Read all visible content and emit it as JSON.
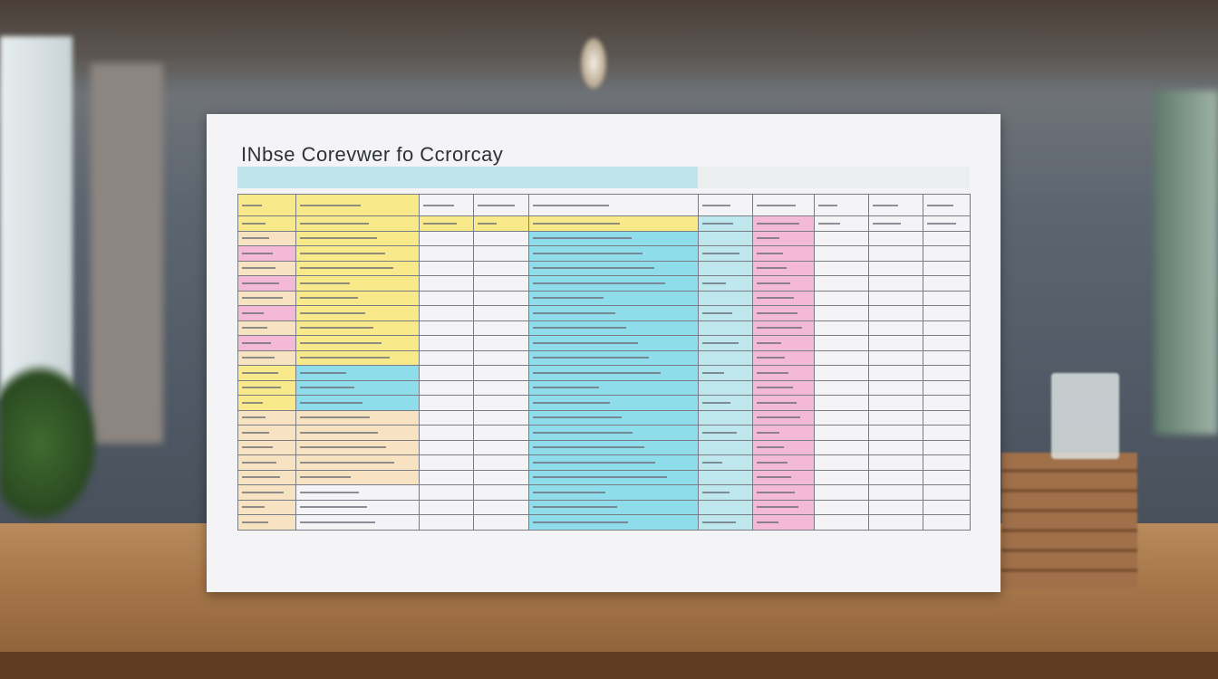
{
  "poster": {
    "title": "INbse Corevwer fo Ccrorcay"
  },
  "colors": {
    "yellow": "#f8ea8a",
    "pink": "#f3b9d6",
    "cyan": "#8fdcea",
    "lightcyan": "#bfe8ee",
    "peach": "#f7e3c2",
    "white": "#f4f4f6"
  }
}
